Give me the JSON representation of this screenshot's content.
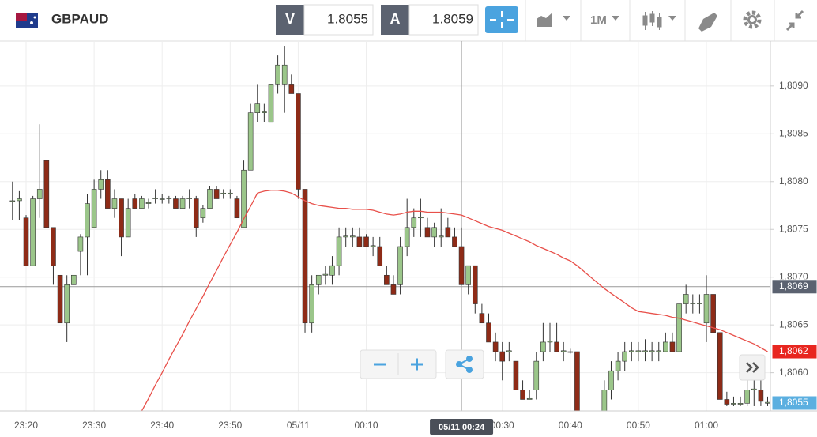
{
  "toolbar": {
    "symbol": "GBPAUD",
    "sell_label": "V",
    "sell_price": "1.8055",
    "buy_label": "A",
    "buy_price": "1.8059",
    "timeframe": "1M"
  },
  "chart_data": {
    "type": "candlestick",
    "categories": [
      null,
      null,
      "23:20",
      null,
      null,
      null,
      null,
      null,
      null,
      null,
      null,
      null,
      "23:30",
      null,
      null,
      null,
      null,
      null,
      null,
      null,
      null,
      null,
      "23:40",
      null,
      null,
      null,
      null,
      null,
      null,
      null,
      null,
      null,
      "23:50",
      null,
      null,
      null,
      null,
      null,
      null,
      null,
      null,
      null,
      "05/11",
      null,
      null,
      null,
      null,
      null,
      null,
      null,
      null,
      null,
      "00:10",
      null,
      null,
      null,
      null,
      null,
      null,
      null,
      null,
      null,
      null,
      null,
      null,
      null,
      null,
      null,
      null,
      null,
      null,
      null,
      "00:30",
      null,
      null,
      null,
      null,
      null,
      null,
      null,
      null,
      null,
      "00:40",
      null,
      null,
      null,
      null,
      null,
      null,
      null,
      null,
      null,
      "00:50",
      null,
      null,
      null,
      null,
      null,
      null,
      null,
      null,
      null,
      "01:00",
      null,
      null,
      null,
      null,
      null,
      null,
      null,
      null,
      null
    ],
    "open": [
      1.8078,
      1.8078,
      1.80762,
      1.80712,
      1.80782,
      1.80822,
      1.80752,
      1.80702,
      1.80652,
      1.80692,
      1.80727,
      1.80742,
      1.80752,
      1.80792,
      1.80802,
      1.80772,
      1.80782,
      1.80742,
      1.80782,
      1.80772,
      1.80777,
      1.80782,
      1.80782,
      1.80782,
      1.80782,
      1.80772,
      1.80782,
      1.80782,
      1.80762,
      1.80772,
      1.80792,
      1.80787,
      1.80787,
      1.80782,
      1.80752,
      1.80812,
      1.80872,
      1.80872,
      1.80862,
      1.80902,
      1.80902,
      1.80902,
      1.80892,
      1.80792,
      1.80652,
      1.80692,
      1.80702,
      1.80702,
      1.80712,
      1.80742,
      1.80742,
      1.80742,
      1.80742,
      1.80732,
      1.80732,
      1.80702,
      1.80692,
      1.80692,
      1.80732,
      1.80752,
      1.80762,
      1.80752,
      1.80742,
      1.80742,
      1.80752,
      1.80742,
      1.80732,
      1.80692,
      1.80712,
      1.80662,
      1.80652,
      1.80632,
      1.80622,
      1.80622,
      1.80612,
      1.80582,
      1.80572,
      1.80582,
      1.80622,
      1.80632,
      1.80632,
      1.80622,
      1.80622,
      1.80622,
      1.80545,
      1.80545,
      1.80545,
      1.80552,
      1.80582,
      1.80602,
      1.80612,
      1.80622,
      1.80622,
      1.80622,
      1.80622,
      1.80622,
      1.80622,
      1.80632,
      1.80622,
      1.80672,
      1.80672,
      1.80672,
      1.80652,
      1.80682,
      1.80642,
      1.80572,
      1.80567,
      1.80567,
      1.80568,
      1.80582,
      1.80582,
      1.80568
    ],
    "high": [
      1.808,
      1.8079,
      1.80765,
      1.80785,
      1.8086,
      1.80822,
      1.80752,
      1.80702,
      1.80702,
      1.80702,
      1.80745,
      1.80787,
      1.80802,
      1.80812,
      1.80812,
      1.80792,
      1.80782,
      1.80782,
      1.80787,
      1.80785,
      1.80782,
      1.80792,
      1.80787,
      1.80785,
      1.80785,
      1.80785,
      1.80792,
      1.80785,
      1.80775,
      1.80795,
      1.80795,
      1.80792,
      1.80792,
      1.80785,
      1.80822,
      1.80882,
      1.80902,
      1.80882,
      1.80902,
      1.80932,
      1.80942,
      1.80912,
      1.80892,
      1.80792,
      1.80702,
      1.80702,
      1.80712,
      1.80722,
      1.80752,
      1.80752,
      1.80752,
      1.80752,
      1.80745,
      1.80742,
      1.80742,
      1.80712,
      1.80702,
      1.80742,
      1.80782,
      1.80772,
      1.80782,
      1.80762,
      1.80757,
      1.80772,
      1.80762,
      1.80752,
      1.80752,
      1.80712,
      1.80712,
      1.80672,
      1.80662,
      1.80642,
      1.80632,
      1.80632,
      1.80612,
      1.80592,
      1.80582,
      1.80622,
      1.80652,
      1.80652,
      1.80652,
      1.80632,
      1.80625,
      1.80622,
      1.80555,
      1.8055,
      1.80552,
      1.80592,
      1.80612,
      1.80622,
      1.80632,
      1.80632,
      1.80632,
      1.80635,
      1.80632,
      1.80632,
      1.80642,
      1.80642,
      1.80672,
      1.80692,
      1.80682,
      1.80682,
      1.80702,
      1.80682,
      1.80642,
      1.8058,
      1.80575,
      1.80575,
      1.80592,
      1.80592,
      1.80592,
      1.80575
    ],
    "low": [
      1.8076,
      1.8076,
      1.80712,
      1.80712,
      1.80762,
      1.80752,
      1.80692,
      1.80652,
      1.80632,
      1.80692,
      1.80702,
      1.80702,
      1.80752,
      1.80782,
      1.80772,
      1.80762,
      1.80722,
      1.80742,
      1.80772,
      1.80772,
      1.80772,
      1.80777,
      1.80777,
      1.80777,
      1.80772,
      1.80772,
      1.80772,
      1.80742,
      1.80757,
      1.80772,
      1.80782,
      1.80782,
      1.80782,
      1.80762,
      1.80752,
      1.80812,
      1.80862,
      1.80862,
      1.80862,
      1.80892,
      1.80872,
      1.80892,
      1.80782,
      1.80642,
      1.80642,
      1.80682,
      1.80692,
      1.80692,
      1.80702,
      1.80732,
      1.80732,
      1.80732,
      1.80732,
      1.80722,
      1.80712,
      1.80692,
      1.80682,
      1.80682,
      1.80722,
      1.80742,
      1.80742,
      1.80742,
      1.80732,
      1.80732,
      1.80742,
      1.80732,
      1.80692,
      1.80682,
      1.80662,
      1.80652,
      1.80632,
      1.80612,
      1.80592,
      1.80612,
      1.80582,
      1.80572,
      1.80572,
      1.80572,
      1.80612,
      1.80622,
      1.80622,
      1.80612,
      1.8062,
      1.8054,
      1.8054,
      1.8054,
      1.8054,
      1.80552,
      1.80572,
      1.80592,
      1.80602,
      1.80612,
      1.80612,
      1.80612,
      1.80612,
      1.80612,
      1.80622,
      1.80622,
      1.80622,
      1.80662,
      1.80662,
      1.80662,
      1.80632,
      1.80642,
      1.80572,
      1.80565,
      1.80565,
      1.80565,
      1.80565,
      1.80565,
      1.80565,
      1.80565
    ],
    "close": [
      1.8078,
      1.80782,
      1.80712,
      1.80782,
      1.80792,
      1.80752,
      1.80712,
      1.80652,
      1.80692,
      1.80702,
      1.80742,
      1.80777,
      1.80792,
      1.80802,
      1.80772,
      1.80782,
      1.80742,
      1.80772,
      1.80772,
      1.80782,
      1.80778,
      1.80783,
      1.80782,
      1.80783,
      1.80772,
      1.80782,
      1.80783,
      1.80752,
      1.80772,
      1.80792,
      1.80782,
      1.80788,
      1.80788,
      1.80762,
      1.80812,
      1.80872,
      1.80882,
      1.80873,
      1.80902,
      1.80922,
      1.80922,
      1.80892,
      1.80792,
      1.80652,
      1.80692,
      1.80702,
      1.80703,
      1.80712,
      1.80742,
      1.80743,
      1.80743,
      1.80732,
      1.80732,
      1.80733,
      1.80712,
      1.80692,
      1.80682,
      1.80732,
      1.80752,
      1.80762,
      1.80763,
      1.80742,
      1.80752,
      1.80743,
      1.80742,
      1.80732,
      1.80692,
      1.80712,
      1.80672,
      1.80652,
      1.80632,
      1.80622,
      1.80612,
      1.80623,
      1.80582,
      1.80572,
      1.80573,
      1.80612,
      1.80632,
      1.80633,
      1.80622,
      1.80623,
      1.80622,
      1.80545,
      1.80545,
      1.80546,
      1.8055,
      1.80582,
      1.80602,
      1.80612,
      1.80622,
      1.80623,
      1.80623,
      1.80623,
      1.80623,
      1.80623,
      1.80632,
      1.80622,
      1.80672,
      1.80682,
      1.80673,
      1.80673,
      1.80682,
      1.80642,
      1.80572,
      1.80567,
      1.80568,
      1.80568,
      1.80582,
      1.80583,
      1.8057,
      1.80569
    ],
    "up_color": "#9bc68a",
    "down_color": "#8e2b17",
    "moving_average": {
      "color": "#e8504a",
      "values": [
        null,
        null,
        null,
        null,
        null,
        null,
        null,
        null,
        null,
        null,
        null,
        null,
        null,
        null,
        null,
        null,
        null,
        null,
        null,
        1.8056,
        1.80573,
        1.80587,
        1.806,
        1.80614,
        1.80627,
        1.8064,
        1.80654,
        1.80667,
        1.8068,
        1.80694,
        1.80707,
        1.80721,
        1.80734,
        1.80747,
        1.80761,
        1.80774,
        1.80788,
        1.8079,
        1.80791,
        1.80791,
        1.8079,
        1.80788,
        1.80784,
        1.8078,
        1.80777,
        1.80775,
        1.80774,
        1.80773,
        1.80772,
        1.80772,
        1.80771,
        1.80771,
        1.80771,
        1.8077,
        1.80768,
        1.80766,
        1.80765,
        1.80766,
        1.80768,
        1.80769,
        1.80769,
        1.80768,
        1.80768,
        1.80768,
        1.80767,
        1.80766,
        1.80765,
        1.80762,
        1.80759,
        1.80756,
        1.80753,
        1.80751,
        1.80749,
        1.80746,
        1.80743,
        1.8074,
        1.80737,
        1.80733,
        1.8073,
        1.80727,
        1.80724,
        1.8072,
        1.80717,
        1.80712,
        1.80706,
        1.807,
        1.80694,
        1.80688,
        1.80683,
        1.80678,
        1.80673,
        1.80668,
        1.80664,
        1.80663,
        1.80662,
        1.80661,
        1.8066,
        1.80658,
        1.80657,
        1.80655,
        1.80653,
        1.80651,
        1.80649,
        1.80647,
        1.80645,
        1.80642,
        1.80639,
        1.80636,
        1.80633,
        1.8063,
        1.80626,
        1.80622
      ]
    },
    "ylim": [
      1.8056,
      1.80947
    ],
    "yticks": [
      {
        "value": 1.806,
        "label": "1,8060"
      },
      {
        "value": 1.8065,
        "label": "1,8065"
      },
      {
        "value": 1.807,
        "label": "1,8070"
      },
      {
        "value": 1.8075,
        "label": "1,8075"
      },
      {
        "value": 1.808,
        "label": "1,8080"
      },
      {
        "value": 1.8085,
        "label": "1,8085"
      },
      {
        "value": 1.809,
        "label": "1,8090"
      }
    ],
    "grid": true,
    "markers": [
      {
        "value": 1.8069,
        "label": "1,8069",
        "color": "#5b6270"
      },
      {
        "value": 1.80622,
        "label": "1,8062",
        "color": "#e8261f"
      },
      {
        "value": 1.80552,
        "label": "1,8055",
        "color": "#5bafe0"
      }
    ],
    "crosshair": {
      "index": 66,
      "value": 1.8069,
      "label": "05/11 00:24"
    }
  }
}
